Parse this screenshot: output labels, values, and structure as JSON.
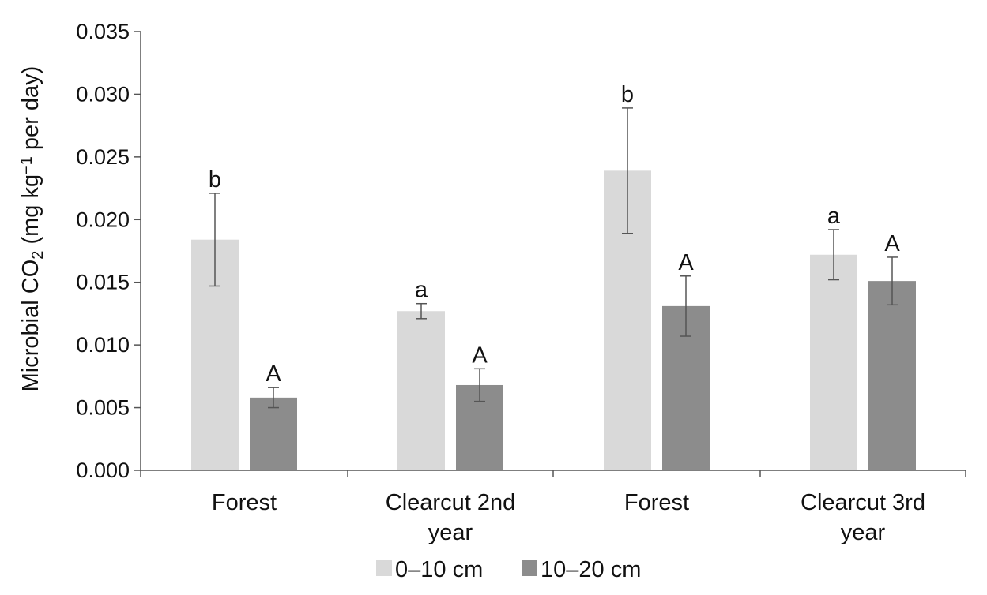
{
  "chart_data": {
    "type": "bar",
    "ylabel": "Microbial CO2 (mg kg−1 per day)",
    "ylabel_parts": {
      "pre": "Microbial CO",
      "sub": "2",
      "mid": " (mg kg",
      "sup": "−1",
      "post": " per day)"
    },
    "ylim": [
      0,
      0.035
    ],
    "yticks": [
      "0.000",
      "0.005",
      "0.010",
      "0.015",
      "0.020",
      "0.025",
      "0.030",
      "0.035"
    ],
    "ytick_values": [
      0,
      0.005,
      0.01,
      0.015,
      0.02,
      0.025,
      0.03,
      0.035
    ],
    "categories": [
      "Forest",
      "Clearcut 2nd year",
      "Forest",
      "Clearcut 3rd year"
    ],
    "category_lines": [
      [
        "Forest"
      ],
      [
        "Clearcut 2nd",
        "year"
      ],
      [
        "Forest"
      ],
      [
        "Clearcut 3rd",
        "year"
      ]
    ],
    "series": [
      {
        "name": "0–10 cm",
        "color": "#d9d9d9",
        "values": [
          0.0184,
          0.0127,
          0.0239,
          0.0172
        ],
        "error": [
          0.0037,
          0.0006,
          0.005,
          0.002
        ],
        "labels": [
          "b",
          "a",
          "b",
          "a"
        ]
      },
      {
        "name": "10–20 cm",
        "color": "#8c8c8c",
        "values": [
          0.0058,
          0.0068,
          0.0131,
          0.0151
        ],
        "error": [
          0.0008,
          0.0013,
          0.0024,
          0.0019
        ],
        "labels": [
          "A",
          "A",
          "A",
          "A"
        ]
      }
    ],
    "grid": false,
    "legend_position": "bottom"
  }
}
